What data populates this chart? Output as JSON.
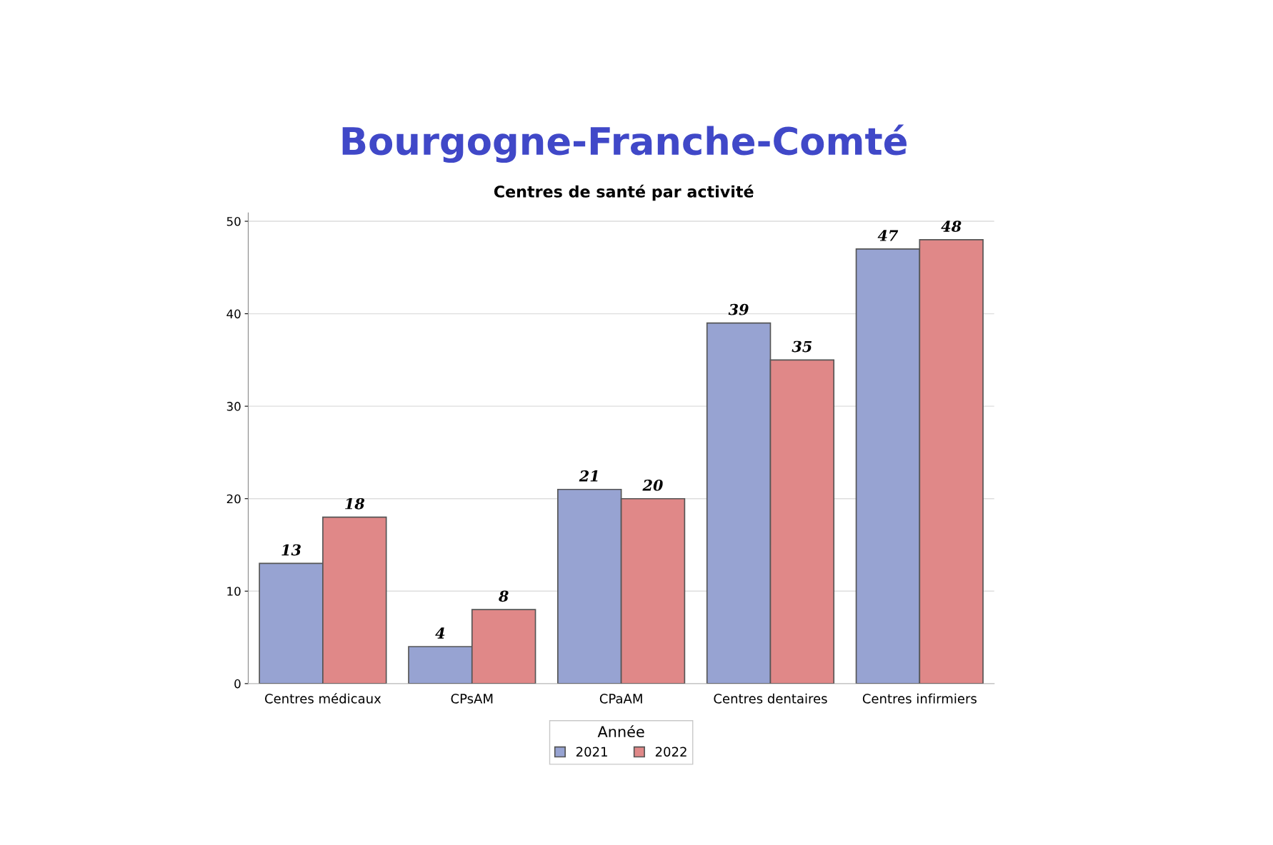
{
  "chart_data": {
    "type": "bar",
    "title": "Bourgogne-Franche-Comté",
    "subtitle": "Centres de santé par activité",
    "categories": [
      "Centres médicaux",
      "CPsAM",
      "CPaAM",
      "Centres dentaires",
      "Centres infirmiers"
    ],
    "series": [
      {
        "name": "2021",
        "color": "#97a3d2",
        "values": [
          13,
          4,
          21,
          39,
          47
        ]
      },
      {
        "name": "2022",
        "color": "#e08888",
        "values": [
          18,
          8,
          20,
          35,
          48
        ]
      }
    ],
    "ylim": [
      0,
      50.9
    ],
    "yticks": [
      0,
      10,
      20,
      30,
      40,
      50
    ],
    "grid": "y",
    "legend": "bottom",
    "legend_title": "Année",
    "data_labels": true
  }
}
